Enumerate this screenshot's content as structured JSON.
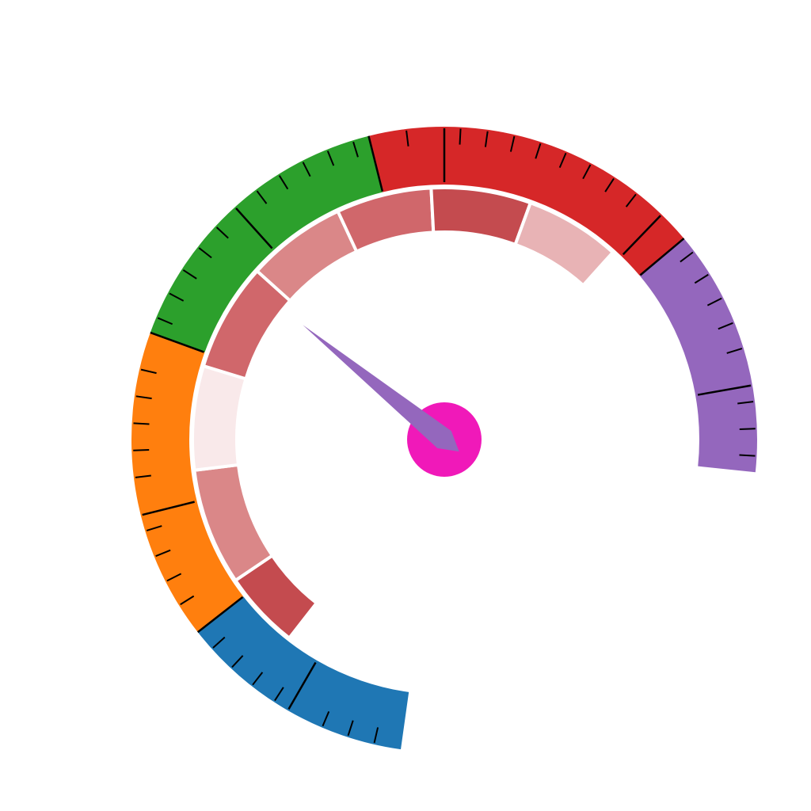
{
  "chart_data": {
    "type": "gauge",
    "title": "",
    "sweep_degrees": [
      -172,
      172
    ],
    "bands": [
      {
        "name": "",
        "start_deg": -172,
        "end_deg": -128,
        "color": "#1f77b4"
      },
      {
        "name": "",
        "start_deg": -128,
        "end_deg": -70,
        "color": "#ff7f0e"
      },
      {
        "name": "",
        "start_deg": -70,
        "end_deg": -14,
        "color": "#2ca02c"
      },
      {
        "name": "",
        "start_deg": -14,
        "end_deg": 50,
        "color": "#d62728"
      },
      {
        "name": "",
        "start_deg": 50,
        "end_deg": 96,
        "color": "#9467bd"
      }
    ],
    "major_ticks_deg": [
      -150,
      -104,
      -42,
      0,
      44,
      80
    ],
    "minor_tick_step_deg": 5,
    "inner_segments": [
      {
        "start_deg": -142,
        "end_deg": -124,
        "color": "#c44b4f"
      },
      {
        "start_deg": -124,
        "end_deg": -97,
        "color": "#da8788"
      },
      {
        "start_deg": -97,
        "end_deg": -73,
        "color": "#f9e9ea"
      },
      {
        "start_deg": -73,
        "end_deg": -48,
        "color": "#d0676b"
      },
      {
        "start_deg": -48,
        "end_deg": -25,
        "color": "#da8788"
      },
      {
        "start_deg": -25,
        "end_deg": -3,
        "color": "#d0676b"
      },
      {
        "start_deg": -3,
        "end_deg": 20,
        "color": "#c44b4f"
      },
      {
        "start_deg": 20,
        "end_deg": 42,
        "color": "#e8b3b5"
      }
    ],
    "needle": {
      "angle_deg": -51,
      "color": "#9467bd"
    },
    "hub": {
      "color": "#f019b9"
    }
  }
}
